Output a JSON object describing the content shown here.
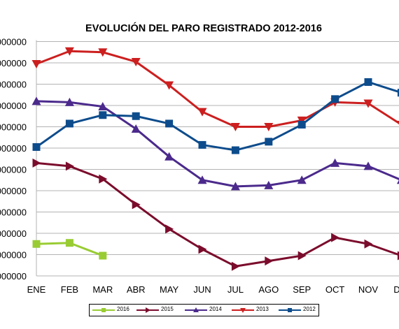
{
  "chart_data": {
    "type": "line",
    "title": "EVOLUCIÓN DEL PARO REGISTRADO 2012-2016",
    "categories": [
      "ENE",
      "FEB",
      "MAR",
      "ABR",
      "MAY",
      "JUN",
      "JUL",
      "AGO",
      "SEP",
      "OCT",
      "NOV",
      "DIC"
    ],
    "y_tick_labels": [
      "000000",
      "000000",
      "000000",
      "000000",
      "000000",
      "000000",
      "000000",
      "000000",
      "000000",
      "000000",
      "000000",
      "000000"
    ],
    "ylim": [
      0,
      11
    ],
    "grid": true,
    "legend_position": "bottom",
    "series": [
      {
        "name": "2016",
        "color": "#99cc33",
        "marker": "square",
        "values": [
          1.5,
          1.55,
          0.95,
          null,
          null,
          null,
          null,
          null,
          null,
          null,
          null,
          null
        ]
      },
      {
        "name": "2015",
        "color": "#7b0c2c",
        "marker": "triangle-right",
        "values": [
          5.3,
          5.15,
          4.55,
          3.35,
          2.2,
          1.25,
          0.45,
          0.7,
          0.95,
          1.8,
          1.5,
          0.95
        ]
      },
      {
        "name": "2014",
        "color": "#4b2a8c",
        "marker": "triangle-up",
        "values": [
          8.2,
          8.15,
          7.95,
          6.9,
          5.6,
          4.5,
          4.2,
          4.25,
          4.5,
          5.3,
          5.15,
          4.5
        ]
      },
      {
        "name": "2013",
        "color": "#cc1f1f",
        "marker": "triangle-down",
        "values": [
          9.95,
          10.55,
          10.5,
          10.05,
          8.95,
          7.7,
          7.0,
          7.0,
          7.3,
          8.15,
          8.1,
          7.1
        ]
      },
      {
        "name": "2012",
        "color": "#0d4c8c",
        "marker": "square",
        "values": [
          6.05,
          7.15,
          7.55,
          7.5,
          7.15,
          6.15,
          5.9,
          6.3,
          7.1,
          8.3,
          9.1,
          8.6
        ]
      }
    ]
  }
}
